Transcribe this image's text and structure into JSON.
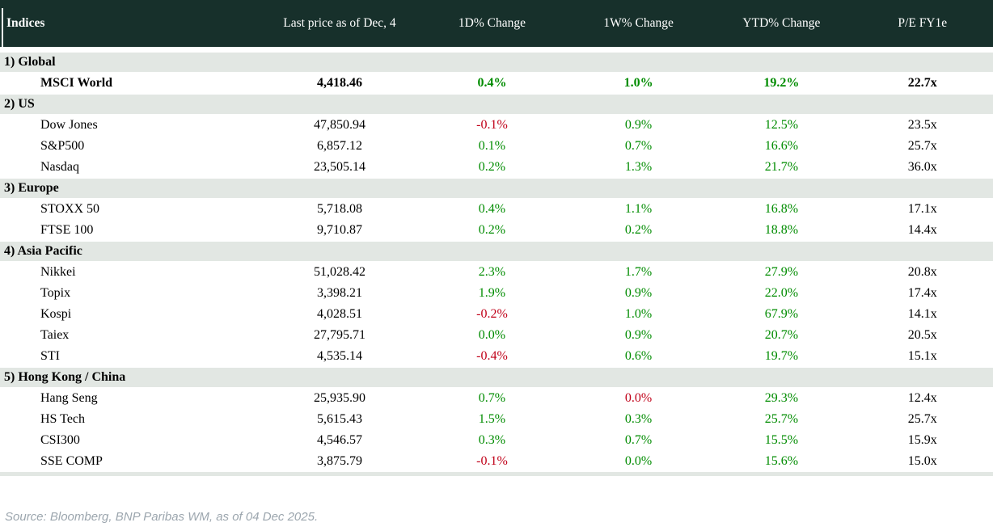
{
  "palette": {
    "header_bg": "#17302b",
    "header_text": "#ffffff",
    "section_bg": "#e2e7e3",
    "up_green": "#008c00",
    "down_red": "#c00018",
    "source_gray": "#9ca6ae"
  },
  "chart_data": {
    "type": "table",
    "title": "Indices",
    "columns": [
      "Last price as of Dec, 4",
      "1D% Change",
      "1W% Change",
      "YTD% Change",
      "P/E FY1e"
    ],
    "sections": [
      {
        "label": "1) Global",
        "rows": [
          {
            "name": "MSCI World",
            "price": "4,418.46",
            "d1": "0.4%",
            "d1_trend": "up",
            "w1": "1.0%",
            "w1_trend": "up",
            "ytd": "19.2%",
            "ytd_trend": "up",
            "pe": "22.7x",
            "bold": true
          }
        ]
      },
      {
        "label": "2) US",
        "rows": [
          {
            "name": "Dow Jones",
            "price": "47,850.94",
            "d1": "-0.1%",
            "d1_trend": "down",
            "w1": "0.9%",
            "w1_trend": "up",
            "ytd": "12.5%",
            "ytd_trend": "up",
            "pe": "23.5x"
          },
          {
            "name": "S&P500",
            "price": "6,857.12",
            "d1": "0.1%",
            "d1_trend": "up",
            "w1": "0.7%",
            "w1_trend": "up",
            "ytd": "16.6%",
            "ytd_trend": "up",
            "pe": "25.7x"
          },
          {
            "name": "Nasdaq",
            "price": "23,505.14",
            "d1": "0.2%",
            "d1_trend": "up",
            "w1": "1.3%",
            "w1_trend": "up",
            "ytd": "21.7%",
            "ytd_trend": "up",
            "pe": "36.0x"
          }
        ]
      },
      {
        "label": "3) Europe",
        "rows": [
          {
            "name": "STOXX 50",
            "price": "5,718.08",
            "d1": "0.4%",
            "d1_trend": "up",
            "w1": "1.1%",
            "w1_trend": "up",
            "ytd": "16.8%",
            "ytd_trend": "up",
            "pe": "17.1x"
          },
          {
            "name": "FTSE 100",
            "price": "9,710.87",
            "d1": "0.2%",
            "d1_trend": "up",
            "w1": "0.2%",
            "w1_trend": "up",
            "ytd": "18.8%",
            "ytd_trend": "up",
            "pe": "14.4x"
          }
        ]
      },
      {
        "label": "4) Asia Pacific",
        "rows": [
          {
            "name": "Nikkei",
            "price": "51,028.42",
            "d1": "2.3%",
            "d1_trend": "up",
            "w1": "1.7%",
            "w1_trend": "up",
            "ytd": "27.9%",
            "ytd_trend": "up",
            "pe": "20.8x"
          },
          {
            "name": "Topix",
            "price": "3,398.21",
            "d1": "1.9%",
            "d1_trend": "up",
            "w1": "0.9%",
            "w1_trend": "up",
            "ytd": "22.0%",
            "ytd_trend": "up",
            "pe": "17.4x"
          },
          {
            "name": "Kospi",
            "price": "4,028.51",
            "d1": "-0.2%",
            "d1_trend": "down",
            "w1": "1.0%",
            "w1_trend": "up",
            "ytd": "67.9%",
            "ytd_trend": "up",
            "pe": "14.1x"
          },
          {
            "name": "Taiex",
            "price": "27,795.71",
            "d1": "0.0%",
            "d1_trend": "up",
            "w1": "0.9%",
            "w1_trend": "up",
            "ytd": "20.7%",
            "ytd_trend": "up",
            "pe": "20.5x"
          },
          {
            "name": "STI",
            "price": "4,535.14",
            "d1": "-0.4%",
            "d1_trend": "down",
            "w1": "0.6%",
            "w1_trend": "up",
            "ytd": "19.7%",
            "ytd_trend": "up",
            "pe": "15.1x"
          }
        ]
      },
      {
        "label": "5) Hong Kong / China",
        "rows": [
          {
            "name": "Hang Seng",
            "price": "25,935.90",
            "d1": "0.7%",
            "d1_trend": "up",
            "w1": "0.0%",
            "w1_trend": "down",
            "ytd": "29.3%",
            "ytd_trend": "up",
            "pe": "12.4x"
          },
          {
            "name": "HS Tech",
            "price": "5,615.43",
            "d1": "1.5%",
            "d1_trend": "up",
            "w1": "0.3%",
            "w1_trend": "up",
            "ytd": "25.7%",
            "ytd_trend": "up",
            "pe": "25.7x"
          },
          {
            "name": "CSI300",
            "price": "4,546.57",
            "d1": "0.3%",
            "d1_trend": "up",
            "w1": "0.7%",
            "w1_trend": "up",
            "ytd": "15.5%",
            "ytd_trend": "up",
            "pe": "15.9x"
          },
          {
            "name": "SSE COMP",
            "price": "3,875.79",
            "d1": "-0.1%",
            "d1_trend": "down",
            "w1": "0.0%",
            "w1_trend": "up",
            "ytd": "15.6%",
            "ytd_trend": "up",
            "pe": "15.0x"
          }
        ]
      }
    ]
  },
  "footer": {
    "source": "Source: Bloomberg, BNP Paribas WM, as of 04 Dec 2025."
  }
}
